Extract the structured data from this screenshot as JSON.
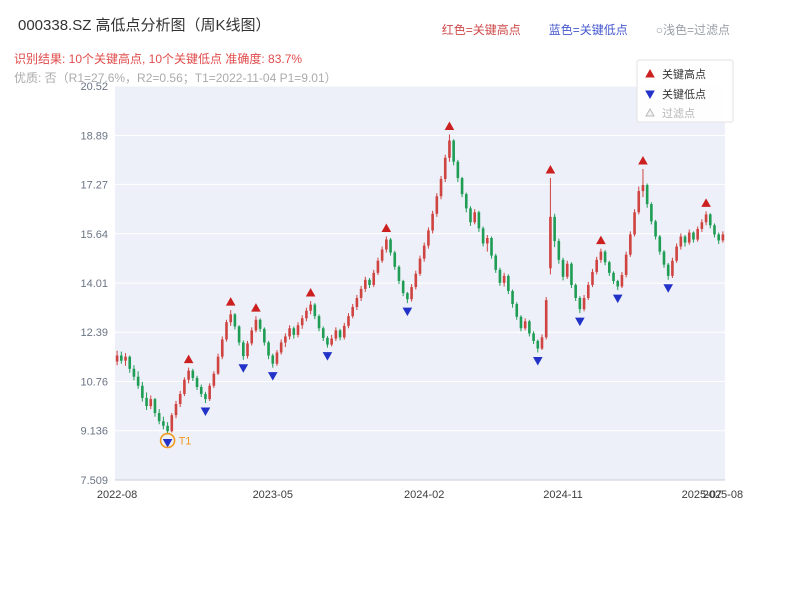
{
  "header": {
    "title": "000338.SZ 高低点分析图（周K线图）",
    "legend_high": "红色=关键高点",
    "legend_low": "蓝色=关键低点",
    "legend_filter": "○浅色=过滤点",
    "result_line": "识别结果: 10个关键高点, 10个关键低点  准确度: 83.7%",
    "quality_line": "优质: 否（R1=27.6%，R2=0.56；T1=2022-11-04 P1=9.01）"
  },
  "colors": {
    "candle_up": "#cf4341",
    "candle_down": "#1f9d55",
    "key_high": "#cc2020",
    "key_low": "#2232c8",
    "t1": "#f09a1f",
    "plot_bg": "#edf0f8",
    "grid": "#ffffff",
    "text_red": "#e14b4b",
    "text_blue": "#4558cf",
    "text_gray": "#9aa0a6"
  },
  "chart_data": {
    "type": "candlestick",
    "title": "000338.SZ 高低点分析图（周K线图）",
    "xlabel": "",
    "ylabel": "",
    "ylim": [
      7.509,
      20.52
    ],
    "grid": true,
    "legend_position": "top-right-inside",
    "y_ticks": [
      "20.52",
      "18.89",
      "17.27",
      "15.64",
      "14.01",
      "12.39",
      "10.76",
      "9.136",
      "7.509"
    ],
    "x_ticks": [
      {
        "label": "2022-08",
        "date": "2022-08-05"
      },
      {
        "label": "2023-05",
        "date": "2023-05-05"
      },
      {
        "label": "2024-02",
        "date": "2024-02-02"
      },
      {
        "label": "2024-11",
        "date": "2024-11-01"
      },
      {
        "label": "2025-07",
        "date": "2025-07-04"
      },
      {
        "label": "2025-08",
        "date": "2025-08-08"
      }
    ],
    "legend": [
      {
        "label": "关键高点",
        "type": "key-high"
      },
      {
        "label": "关键低点",
        "type": "key-low"
      },
      {
        "label": "过滤点",
        "type": "filtered"
      }
    ],
    "candles_format": [
      "date",
      "open",
      "high",
      "low",
      "close"
    ],
    "candles": [
      [
        "2022-08-05",
        11.42,
        11.78,
        11.3,
        11.62
      ],
      [
        "2022-08-12",
        11.62,
        11.75,
        11.35,
        11.45
      ],
      [
        "2022-08-19",
        11.45,
        11.7,
        11.28,
        11.58
      ],
      [
        "2022-08-26",
        11.58,
        11.62,
        11.05,
        11.18
      ],
      [
        "2022-09-02",
        11.18,
        11.3,
        10.8,
        10.92
      ],
      [
        "2022-09-09",
        10.92,
        11.1,
        10.52,
        10.62
      ],
      [
        "2022-09-16",
        10.62,
        10.75,
        10.1,
        10.22
      ],
      [
        "2022-09-23",
        10.22,
        10.4,
        9.82,
        9.95
      ],
      [
        "2022-09-30",
        9.95,
        10.3,
        9.85,
        10.18
      ],
      [
        "2022-10-14",
        10.18,
        10.22,
        9.6,
        9.72
      ],
      [
        "2022-10-21",
        9.72,
        9.85,
        9.35,
        9.45
      ],
      [
        "2022-10-28",
        9.45,
        9.6,
        9.18,
        9.3
      ],
      [
        "2022-11-04",
        9.3,
        9.42,
        9.01,
        9.12
      ],
      [
        "2022-11-11",
        9.12,
        9.72,
        9.08,
        9.65
      ],
      [
        "2022-11-18",
        9.65,
        10.12,
        9.55,
        10.02
      ],
      [
        "2022-11-25",
        10.02,
        10.45,
        9.92,
        10.35
      ],
      [
        "2022-12-02",
        10.35,
        10.9,
        10.28,
        10.82
      ],
      [
        "2022-12-09",
        10.82,
        11.22,
        10.7,
        11.12
      ],
      [
        "2022-12-16",
        11.12,
        11.18,
        10.78,
        10.88
      ],
      [
        "2022-12-23",
        10.88,
        10.95,
        10.48,
        10.58
      ],
      [
        "2022-12-30",
        10.58,
        10.66,
        10.25,
        10.35
      ],
      [
        "2023-01-06",
        10.35,
        10.42,
        10.05,
        10.18
      ],
      [
        "2023-01-13",
        10.18,
        10.7,
        10.12,
        10.62
      ],
      [
        "2023-01-20",
        10.62,
        11.1,
        10.55,
        11.02
      ],
      [
        "2023-02-03",
        11.02,
        11.68,
        10.98,
        11.58
      ],
      [
        "2023-02-10",
        11.58,
        12.25,
        11.5,
        12.15
      ],
      [
        "2023-02-17",
        12.15,
        12.8,
        12.08,
        12.72
      ],
      [
        "2023-02-24",
        12.72,
        13.12,
        12.6,
        12.98
      ],
      [
        "2023-03-03",
        12.98,
        13.02,
        12.48,
        12.58
      ],
      [
        "2023-03-10",
        12.58,
        12.62,
        11.95,
        12.05
      ],
      [
        "2023-03-17",
        12.05,
        12.12,
        11.48,
        11.6
      ],
      [
        "2023-03-24",
        11.6,
        12.1,
        11.52,
        12.02
      ],
      [
        "2023-03-31",
        12.02,
        12.55,
        11.95,
        12.45
      ],
      [
        "2023-04-07",
        12.45,
        12.92,
        12.38,
        12.8
      ],
      [
        "2023-04-14",
        12.8,
        12.85,
        12.4,
        12.5
      ],
      [
        "2023-04-21",
        12.5,
        12.55,
        11.95,
        12.05
      ],
      [
        "2023-04-28",
        12.05,
        12.1,
        11.5,
        11.62
      ],
      [
        "2023-05-05",
        11.62,
        11.68,
        11.22,
        11.35
      ],
      [
        "2023-05-12",
        11.35,
        11.8,
        11.28,
        11.72
      ],
      [
        "2023-05-19",
        11.72,
        12.15,
        11.65,
        12.05
      ],
      [
        "2023-05-26",
        12.05,
        12.35,
        11.9,
        12.25
      ],
      [
        "2023-06-02",
        12.25,
        12.62,
        12.15,
        12.52
      ],
      [
        "2023-06-09",
        12.52,
        12.58,
        12.18,
        12.3
      ],
      [
        "2023-06-16",
        12.3,
        12.72,
        12.22,
        12.62
      ],
      [
        "2023-06-30",
        12.62,
        12.95,
        12.5,
        12.85
      ],
      [
        "2023-07-07",
        12.85,
        13.2,
        12.75,
        13.1
      ],
      [
        "2023-07-14",
        13.1,
        13.42,
        12.98,
        13.3
      ],
      [
        "2023-07-21",
        13.3,
        13.35,
        12.82,
        12.92
      ],
      [
        "2023-07-28",
        12.92,
        12.98,
        12.42,
        12.52
      ],
      [
        "2023-08-04",
        12.52,
        12.58,
        12.1,
        12.2
      ],
      [
        "2023-08-11",
        12.2,
        12.26,
        11.88,
        11.98
      ],
      [
        "2023-08-18",
        11.98,
        12.3,
        11.92,
        12.18
      ],
      [
        "2023-08-25",
        12.18,
        12.55,
        12.1,
        12.45
      ],
      [
        "2023-09-01",
        12.45,
        12.5,
        12.12,
        12.22
      ],
      [
        "2023-09-08",
        12.22,
        12.7,
        12.15,
        12.6
      ],
      [
        "2023-09-15",
        12.6,
        13.02,
        12.52,
        12.92
      ],
      [
        "2023-09-22",
        12.92,
        13.32,
        12.85,
        13.22
      ],
      [
        "2023-10-13",
        13.22,
        13.62,
        13.12,
        13.52
      ],
      [
        "2023-10-20",
        13.52,
        13.92,
        13.42,
        13.82
      ],
      [
        "2023-10-27",
        13.82,
        14.22,
        13.72,
        14.12
      ],
      [
        "2023-11-03",
        14.12,
        14.18,
        13.85,
        13.95
      ],
      [
        "2023-11-10",
        13.95,
        14.45,
        13.88,
        14.35
      ],
      [
        "2023-11-17",
        14.35,
        14.85,
        14.28,
        14.75
      ],
      [
        "2023-11-24",
        14.75,
        15.22,
        14.68,
        15.12
      ],
      [
        "2023-12-01",
        15.12,
        15.55,
        15.02,
        15.45
      ],
      [
        "2023-12-08",
        15.45,
        15.5,
        14.92,
        15.02
      ],
      [
        "2023-12-15",
        15.02,
        15.08,
        14.45,
        14.55
      ],
      [
        "2023-12-22",
        14.55,
        14.6,
        13.98,
        14.08
      ],
      [
        "2023-12-29",
        14.08,
        14.12,
        13.58,
        13.68
      ],
      [
        "2024-01-05",
        13.68,
        13.72,
        13.35,
        13.48
      ],
      [
        "2024-01-12",
        13.48,
        13.98,
        13.4,
        13.88
      ],
      [
        "2024-01-19",
        13.88,
        14.42,
        13.8,
        14.32
      ],
      [
        "2024-01-26",
        14.32,
        14.92,
        14.25,
        14.82
      ],
      [
        "2024-02-02",
        14.82,
        15.35,
        14.72,
        15.25
      ],
      [
        "2024-02-23",
        15.25,
        15.85,
        15.15,
        15.75
      ],
      [
        "2024-03-01",
        15.75,
        16.4,
        15.65,
        16.3
      ],
      [
        "2024-03-08",
        16.3,
        16.98,
        16.2,
        16.88
      ],
      [
        "2024-03-15",
        16.88,
        17.55,
        16.78,
        17.45
      ],
      [
        "2024-03-22",
        17.45,
        18.25,
        17.35,
        18.15
      ],
      [
        "2024-03-29",
        18.15,
        18.92,
        18.02,
        18.72
      ],
      [
        "2024-04-12",
        18.72,
        18.76,
        17.9,
        18.02
      ],
      [
        "2024-04-19",
        18.02,
        18.08,
        17.35,
        17.48
      ],
      [
        "2024-04-26",
        17.48,
        17.52,
        16.85,
        16.95
      ],
      [
        "2024-05-10",
        16.95,
        17.0,
        16.35,
        16.48
      ],
      [
        "2024-05-17",
        16.48,
        16.55,
        15.9,
        16.02
      ],
      [
        "2024-05-24",
        16.02,
        16.45,
        15.95,
        16.35
      ],
      [
        "2024-05-31",
        16.35,
        16.4,
        15.7,
        15.82
      ],
      [
        "2024-06-07",
        15.82,
        15.88,
        15.22,
        15.32
      ],
      [
        "2024-06-14",
        15.32,
        15.6,
        15.05,
        15.5
      ],
      [
        "2024-06-21",
        15.5,
        15.55,
        14.82,
        14.92
      ],
      [
        "2024-06-28",
        14.92,
        14.98,
        14.35,
        14.45
      ],
      [
        "2024-07-05",
        14.45,
        14.52,
        13.92,
        14.02
      ],
      [
        "2024-07-12",
        14.02,
        14.35,
        13.9,
        14.25
      ],
      [
        "2024-07-19",
        14.25,
        14.3,
        13.65,
        13.75
      ],
      [
        "2024-07-26",
        13.75,
        13.8,
        13.2,
        13.32
      ],
      [
        "2024-08-02",
        13.32,
        13.38,
        12.8,
        12.9
      ],
      [
        "2024-08-09",
        12.9,
        12.95,
        12.42,
        12.52
      ],
      [
        "2024-08-16",
        12.52,
        12.85,
        12.45,
        12.75
      ],
      [
        "2024-08-23",
        12.75,
        12.8,
        12.25,
        12.35
      ],
      [
        "2024-08-30",
        12.35,
        12.42,
        12.0,
        12.1
      ],
      [
        "2024-09-06",
        12.1,
        12.15,
        11.72,
        11.85
      ],
      [
        "2024-09-13",
        11.85,
        12.32,
        11.8,
        12.22
      ],
      [
        "2024-09-27",
        12.22,
        13.55,
        12.15,
        13.45
      ],
      [
        "2024-10-11",
        14.5,
        17.48,
        14.3,
        16.2
      ],
      [
        "2024-10-18",
        16.2,
        16.3,
        15.2,
        15.4
      ],
      [
        "2024-10-25",
        15.4,
        15.48,
        14.65,
        14.78
      ],
      [
        "2024-11-01",
        14.78,
        14.85,
        14.1,
        14.22
      ],
      [
        "2024-11-08",
        14.22,
        14.75,
        14.15,
        14.65
      ],
      [
        "2024-11-15",
        14.65,
        14.7,
        13.85,
        13.95
      ],
      [
        "2024-11-22",
        13.95,
        14.0,
        13.42,
        13.52
      ],
      [
        "2024-11-29",
        13.52,
        13.58,
        13.02,
        13.15
      ],
      [
        "2024-12-06",
        13.15,
        13.62,
        13.08,
        13.52
      ],
      [
        "2024-12-13",
        13.52,
        14.05,
        13.45,
        13.95
      ],
      [
        "2024-12-20",
        13.95,
        14.48,
        13.88,
        14.38
      ],
      [
        "2024-12-27",
        14.38,
        14.88,
        14.3,
        14.78
      ],
      [
        "2025-01-03",
        14.78,
        15.15,
        14.68,
        15.05
      ],
      [
        "2025-01-10",
        15.05,
        15.1,
        14.6,
        14.7
      ],
      [
        "2025-01-17",
        14.7,
        14.75,
        14.25,
        14.35
      ],
      [
        "2025-01-24",
        14.35,
        14.4,
        13.98,
        14.08
      ],
      [
        "2025-02-07",
        14.08,
        14.12,
        13.78,
        13.9
      ],
      [
        "2025-02-14",
        13.9,
        14.38,
        13.85,
        14.28
      ],
      [
        "2025-02-21",
        14.28,
        15.05,
        14.2,
        14.95
      ],
      [
        "2025-02-28",
        14.95,
        15.72,
        14.88,
        15.62
      ],
      [
        "2025-03-07",
        15.62,
        16.45,
        15.55,
        16.35
      ],
      [
        "2025-03-14",
        16.35,
        17.2,
        16.28,
        17.05
      ],
      [
        "2025-03-21",
        17.05,
        17.78,
        16.85,
        17.25
      ],
      [
        "2025-03-28",
        17.25,
        17.3,
        16.5,
        16.62
      ],
      [
        "2025-04-03",
        16.62,
        16.68,
        15.95,
        16.05
      ],
      [
        "2025-04-11",
        16.05,
        16.1,
        15.45,
        15.55
      ],
      [
        "2025-04-18",
        15.55,
        15.6,
        14.95,
        15.05
      ],
      [
        "2025-04-25",
        15.05,
        15.1,
        14.52,
        14.62
      ],
      [
        "2025-05-09",
        14.62,
        14.68,
        14.12,
        14.25
      ],
      [
        "2025-05-16",
        14.25,
        14.85,
        14.18,
        14.75
      ],
      [
        "2025-05-23",
        14.75,
        15.32,
        14.68,
        15.22
      ],
      [
        "2025-05-30",
        15.22,
        15.65,
        15.12,
        15.55
      ],
      [
        "2025-06-06",
        15.55,
        15.6,
        15.22,
        15.35
      ],
      [
        "2025-06-13",
        15.35,
        15.78,
        15.28,
        15.68
      ],
      [
        "2025-06-20",
        15.68,
        15.72,
        15.35,
        15.45
      ],
      [
        "2025-06-27",
        15.45,
        15.88,
        15.38,
        15.8
      ],
      [
        "2025-07-04",
        15.8,
        16.12,
        15.7,
        16.02
      ],
      [
        "2025-07-11",
        16.02,
        16.38,
        15.92,
        16.28
      ],
      [
        "2025-07-18",
        16.28,
        16.32,
        15.82,
        15.92
      ],
      [
        "2025-07-25",
        15.92,
        15.98,
        15.52,
        15.62
      ],
      [
        "2025-08-01",
        15.62,
        15.68,
        15.3,
        15.42
      ],
      [
        "2025-08-08",
        15.42,
        15.72,
        15.35,
        15.62
      ]
    ],
    "key_highs": [
      {
        "date": "2022-12-09",
        "price": 11.22
      },
      {
        "date": "2023-02-24",
        "price": 13.12
      },
      {
        "date": "2023-04-07",
        "price": 12.92
      },
      {
        "date": "2023-07-14",
        "price": 13.42
      },
      {
        "date": "2023-12-01",
        "price": 15.55
      },
      {
        "date": "2024-03-29",
        "price": 18.92
      },
      {
        "date": "2024-10-11",
        "price": 17.48
      },
      {
        "date": "2025-01-03",
        "price": 15.15
      },
      {
        "date": "2025-03-21",
        "price": 17.78
      },
      {
        "date": "2025-07-11",
        "price": 16.38
      }
    ],
    "key_lows": [
      {
        "date": "2022-11-04",
        "price": 9.01
      },
      {
        "date": "2023-01-06",
        "price": 10.05
      },
      {
        "date": "2023-03-17",
        "price": 11.48
      },
      {
        "date": "2023-05-05",
        "price": 11.22
      },
      {
        "date": "2023-08-11",
        "price": 11.88
      },
      {
        "date": "2024-01-05",
        "price": 13.35
      },
      {
        "date": "2024-09-06",
        "price": 11.72
      },
      {
        "date": "2024-11-29",
        "price": 13.02
      },
      {
        "date": "2025-02-07",
        "price": 13.78
      },
      {
        "date": "2025-05-09",
        "price": 14.12
      }
    ],
    "filtered_points": [],
    "t1_annotation": {
      "date": "2022-11-04",
      "price": 9.01,
      "label": "T1"
    }
  }
}
